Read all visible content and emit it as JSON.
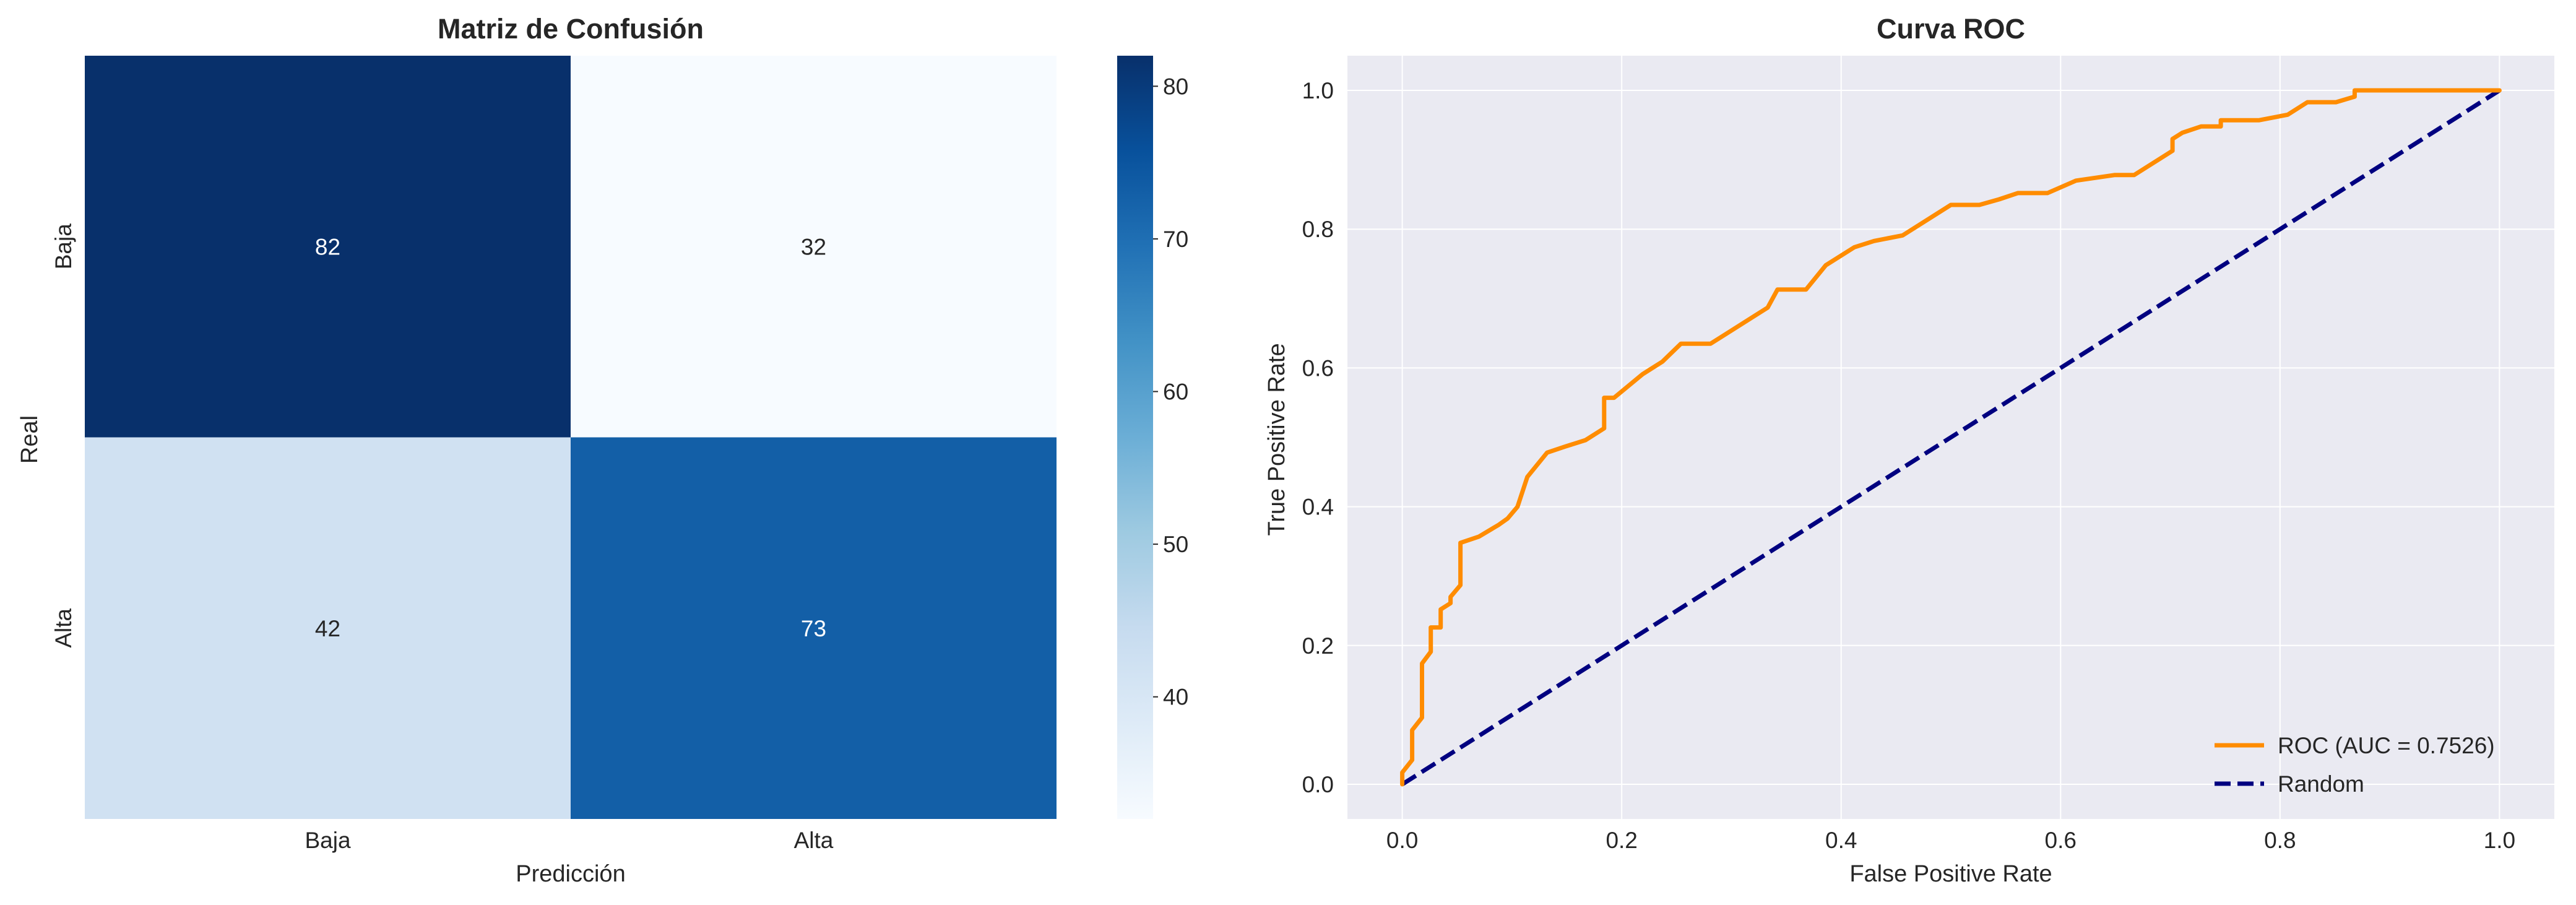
{
  "chart_data": [
    {
      "type": "heatmap",
      "title": "Matriz de Confusión",
      "xlabel": "Predicción",
      "ylabel": "Real",
      "x_categories": [
        "Baja",
        "Alta"
      ],
      "y_categories": [
        "Baja",
        "Alta"
      ],
      "values": [
        [
          82,
          32
        ],
        [
          42,
          73
        ]
      ],
      "colorbar": {
        "min": 32,
        "max": 82,
        "ticks": [
          40,
          50,
          60,
          70,
          80
        ]
      },
      "colormap": [
        "#f7fbff",
        "#deebf7",
        "#c6dbef",
        "#9ecae1",
        "#6baed6",
        "#4292c6",
        "#2171b5",
        "#08519c",
        "#08306b"
      ]
    },
    {
      "type": "line",
      "title": "Curva ROC",
      "xlabel": "False Positive Rate",
      "ylabel": "True Positive Rate",
      "xlim": [
        -0.05,
        1.05
      ],
      "ylim": [
        -0.05,
        1.05
      ],
      "xticks": [
        "0.0",
        "0.2",
        "0.4",
        "0.6",
        "0.8",
        "1.0"
      ],
      "yticks": [
        "0.0",
        "0.2",
        "0.4",
        "0.6",
        "0.8",
        "1.0"
      ],
      "grid": true,
      "legend_position": "lower-right",
      "series": [
        {
          "name": "ROC (AUC = 0.7526)",
          "color": "#ff8c00",
          "style": "solid",
          "points": [
            [
              0.0,
              0.0
            ],
            [
              0.0,
              0.017
            ],
            [
              0.009,
              0.035
            ],
            [
              0.009,
              0.078
            ],
            [
              0.018,
              0.096
            ],
            [
              0.018,
              0.174
            ],
            [
              0.026,
              0.191
            ],
            [
              0.026,
              0.226
            ],
            [
              0.035,
              0.226
            ],
            [
              0.035,
              0.252
            ],
            [
              0.044,
              0.261
            ],
            [
              0.044,
              0.27
            ],
            [
              0.053,
              0.287
            ],
            [
              0.053,
              0.348
            ],
            [
              0.07,
              0.357
            ],
            [
              0.088,
              0.374
            ],
            [
              0.096,
              0.383
            ],
            [
              0.105,
              0.4
            ],
            [
              0.114,
              0.443
            ],
            [
              0.132,
              0.478
            ],
            [
              0.149,
              0.487
            ],
            [
              0.167,
              0.496
            ],
            [
              0.184,
              0.513
            ],
            [
              0.184,
              0.557
            ],
            [
              0.193,
              0.557
            ],
            [
              0.219,
              0.591
            ],
            [
              0.237,
              0.609
            ],
            [
              0.254,
              0.635
            ],
            [
              0.281,
              0.635
            ],
            [
              0.333,
              0.687
            ],
            [
              0.342,
              0.713
            ],
            [
              0.368,
              0.713
            ],
            [
              0.386,
              0.748
            ],
            [
              0.412,
              0.774
            ],
            [
              0.43,
              0.783
            ],
            [
              0.456,
              0.791
            ],
            [
              0.5,
              0.835
            ],
            [
              0.526,
              0.835
            ],
            [
              0.544,
              0.843
            ],
            [
              0.561,
              0.852
            ],
            [
              0.588,
              0.852
            ],
            [
              0.614,
              0.87
            ],
            [
              0.649,
              0.878
            ],
            [
              0.667,
              0.878
            ],
            [
              0.702,
              0.913
            ],
            [
              0.702,
              0.93
            ],
            [
              0.711,
              0.939
            ],
            [
              0.728,
              0.948
            ],
            [
              0.746,
              0.948
            ],
            [
              0.746,
              0.957
            ],
            [
              0.772,
              0.957
            ],
            [
              0.781,
              0.957
            ],
            [
              0.807,
              0.965
            ],
            [
              0.825,
              0.983
            ],
            [
              0.851,
              0.983
            ],
            [
              0.868,
              0.991
            ],
            [
              0.868,
              1.0
            ],
            [
              1.0,
              1.0
            ]
          ]
        },
        {
          "name": "Random",
          "color": "#000080",
          "style": "dashed",
          "points": [
            [
              0.0,
              0.0
            ],
            [
              1.0,
              1.0
            ]
          ]
        }
      ]
    }
  ]
}
